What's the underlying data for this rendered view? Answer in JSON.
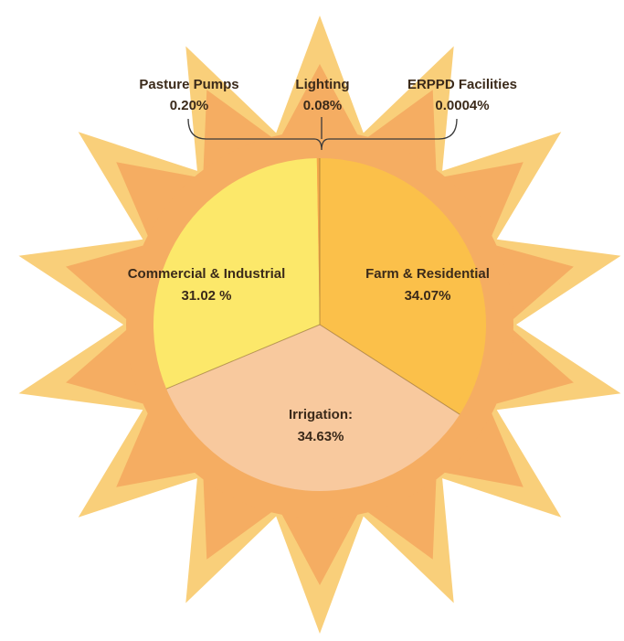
{
  "chart_data": {
    "type": "pie",
    "title": "",
    "slices": [
      {
        "label": "Farm & Residential",
        "value_text": "34.07%",
        "value": 34.07,
        "color": "#fbc04a"
      },
      {
        "label": "Irrigation:",
        "value_text": "34.63%",
        "value": 34.63,
        "color": "#f8c99e"
      },
      {
        "label": "Commercial & Industrial",
        "value_text": "31.02 %",
        "value": 31.02,
        "color": "#fce86a"
      },
      {
        "label": "Pasture Pumps",
        "value_text": "0.20%",
        "value": 0.2,
        "color": "#f5a84a"
      },
      {
        "label": "Lighting",
        "value_text": "0.08%",
        "value": 0.08,
        "color": "#f5a84a"
      },
      {
        "label": "ERPPD Facilities",
        "value_text": "0.0004%",
        "value": 0.0004,
        "color": "#f5a84a"
      }
    ],
    "decoration": "sun",
    "colors": {
      "sun_outer": "#f9cf7a",
      "sun_inner": "#f5ad62",
      "bracket": "#3b3b3b",
      "divider": "#7a5a2a",
      "text": "#3b2a1a"
    }
  }
}
